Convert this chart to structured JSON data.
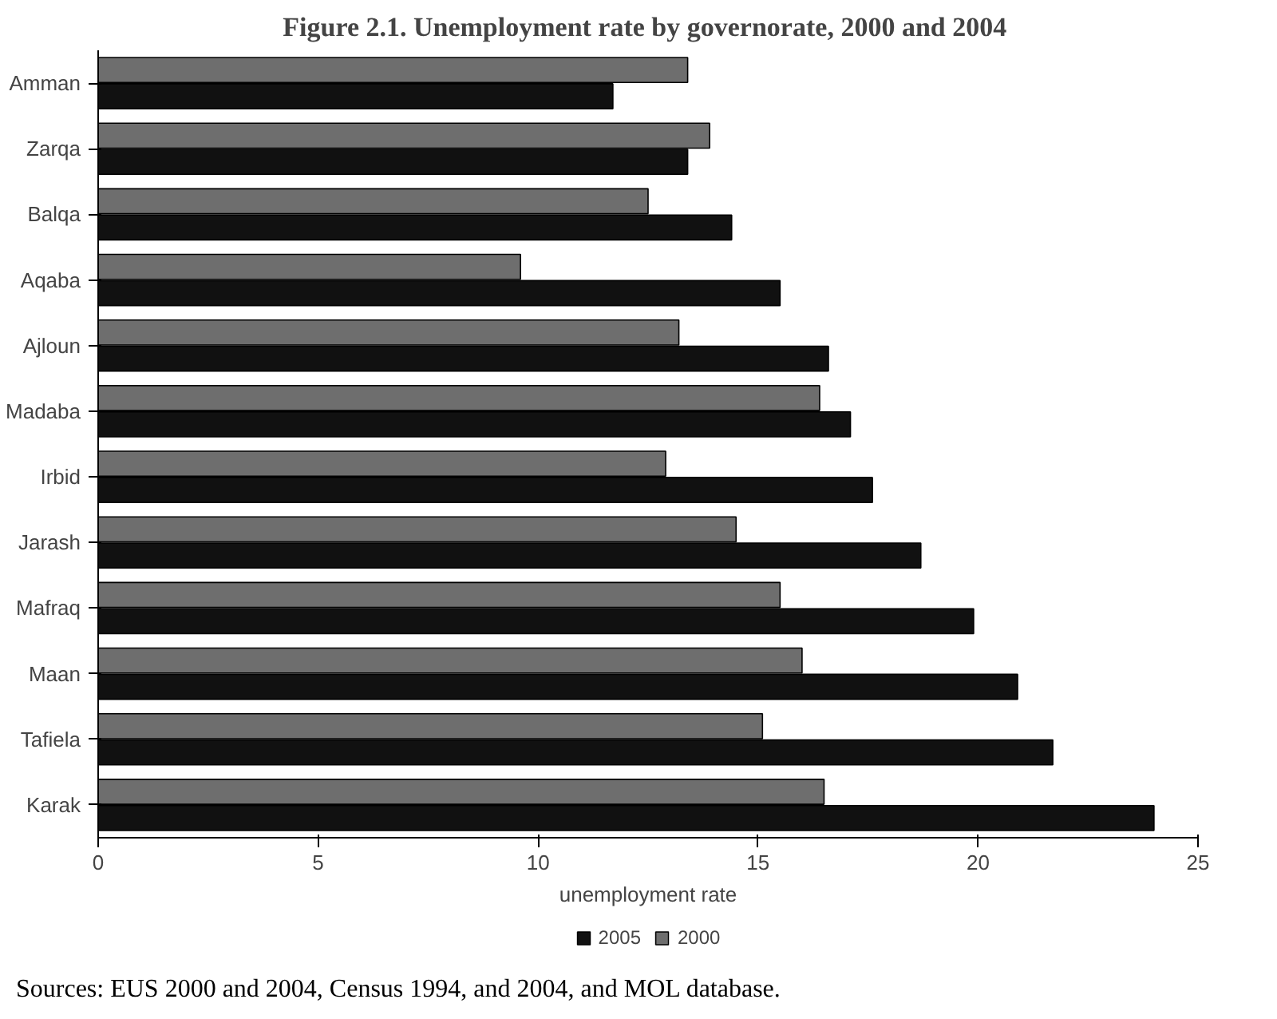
{
  "chart_data": {
    "type": "bar",
    "orientation": "horizontal",
    "title": "Figure 2.1.  Unemployment rate by governorate, 2000 and 2004",
    "xlabel": "unemployment rate",
    "categories": [
      "Amman",
      "Zarqa",
      "Balqa",
      "Aqaba",
      "Ajloun",
      "Madaba",
      "Irbid",
      "Jarash",
      "Mafraq",
      "Maan",
      "Tafiela",
      "Karak"
    ],
    "series": [
      {
        "name": "2000",
        "color": "#6e6e6e",
        "values": [
          13.4,
          13.9,
          12.5,
          9.6,
          13.2,
          16.4,
          12.9,
          14.5,
          15.5,
          16.0,
          15.1,
          16.5
        ]
      },
      {
        "name": "2005",
        "color": "#111111",
        "values": [
          11.7,
          13.4,
          14.4,
          15.5,
          16.6,
          17.1,
          17.6,
          18.7,
          19.9,
          20.9,
          21.7,
          24.0
        ]
      }
    ],
    "xlim": [
      0,
      25
    ],
    "xticks": [
      0,
      5,
      10,
      15,
      20,
      25
    ],
    "grid": false,
    "legend": "bottom",
    "annotations": [
      "Sources: EUS 2000 and 2004, Census 1994, and 2004, and MOL database."
    ]
  }
}
